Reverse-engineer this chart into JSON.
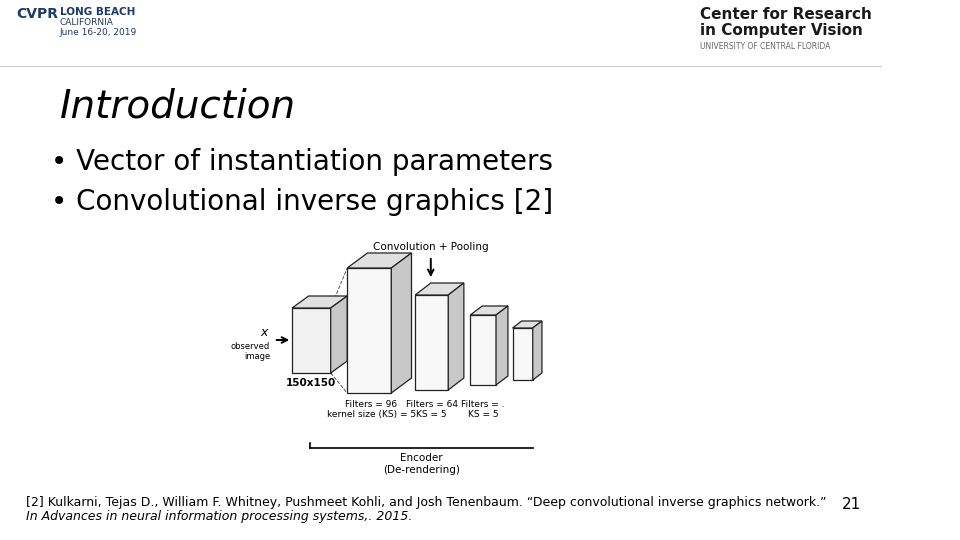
{
  "title": "Introduction",
  "bullet1": "Vector of instantiation parameters",
  "bullet2": "Convolutional inverse graphics [2]",
  "ref_line1": "[2] Kulkarni, Tejas D., William F. Whitney, Pushmeet Kohli, and Josh Tenenbaum. “Deep convolutional inverse graphics network.”",
  "ref_line2": "In Advances in neural information processing systems,. 2015.",
  "page_number": "21",
  "bg_color": "#ffffff",
  "text_color": "#000000",
  "title_fontsize": 28,
  "bullet_fontsize": 20,
  "ref_fontsize": 9,
  "page_fontsize": 11,
  "diagram_label_convpool": "Convolution + Pooling",
  "diagram_label_obs": "observed\nimage",
  "diagram_label_150": "150x150",
  "diagram_label_f1": "Filters = 96\nkernel size (KS) = 5",
  "diagram_label_f2": "Filters = 64\nKS = 5",
  "diagram_label_f3": "Filters = .\nKS = 5",
  "diagram_label_encoder": "Encoder\n(De-rendering)",
  "cvpr_line1": "LONG BEACH",
  "cvpr_line2": "CALIFORNIA",
  "cvpr_line3": "June 16-20, 2019",
  "ucf_line1": "Center for Research",
  "ucf_line2": "in Computer Vision",
  "ucf_line3": "UNIVERSITY OF CENTRAL FLORIDA"
}
